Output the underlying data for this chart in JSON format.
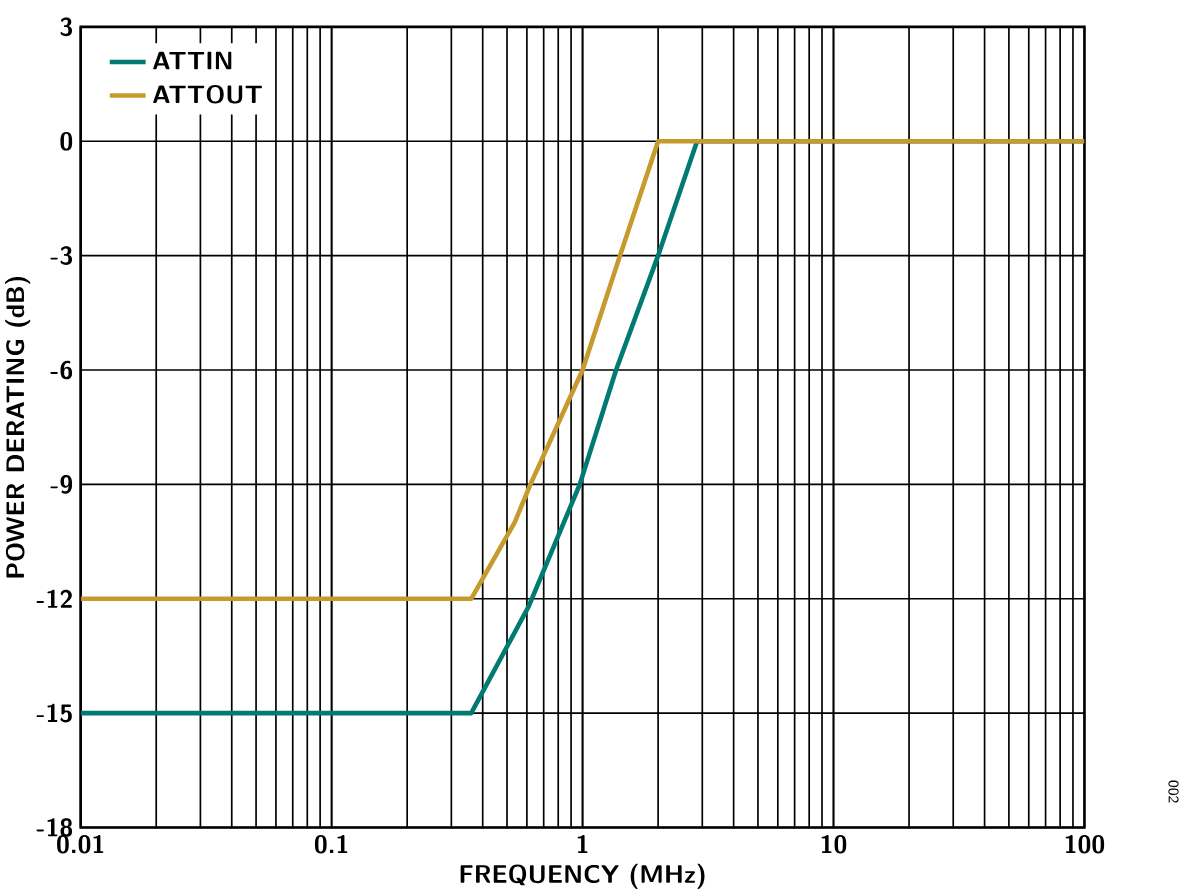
{
  "chart_data": {
    "type": "line",
    "xlabel": "FREQUENCY (MHz)",
    "ylabel": "POWER DERATING (dB)",
    "log": "x",
    "grid": true,
    "legend": "top left",
    "line_style": "solid",
    "marker": "none",
    "xlim": [
      0.01,
      100
    ],
    "xticks": [
      0.01,
      0.1,
      1,
      10,
      100
    ],
    "ylim": [
      -18,
      3
    ],
    "yticks": [
      -18,
      -15,
      -12,
      -9,
      -6,
      -3,
      0,
      3
    ],
    "annotations": [
      "002"
    ],
    "series": [
      {
        "name": "ATTIN",
        "color": "#007a72",
        "x": [
          0.01,
          0.36,
          0.61,
          0.975,
          1.36,
          2.0,
          2.86,
          100
        ],
        "values": [
          -15,
          -15,
          -12.2,
          -9,
          -6,
          -3,
          0,
          0
        ]
      },
      {
        "name": "ATTOUT",
        "color": "#c79a2e",
        "x": [
          0.01,
          0.36,
          0.536,
          0.62,
          1.0,
          1.41,
          2.0,
          100
        ],
        "values": [
          -12,
          -12,
          -10,
          -9,
          -6,
          -3,
          0,
          0
        ]
      }
    ]
  }
}
